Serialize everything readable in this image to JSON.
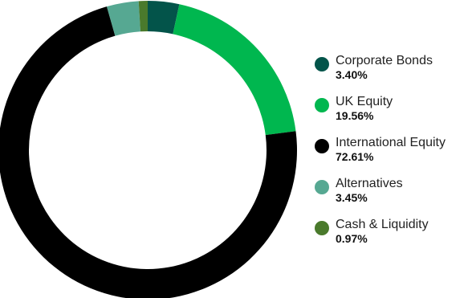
{
  "chart_data": {
    "type": "pie",
    "donut": true,
    "title": "",
    "legend_position": "right",
    "slices": [
      {
        "label": "Corporate Bonds",
        "value": 3.4,
        "value_label": "3.40%",
        "color": "#03544a"
      },
      {
        "label": "UK Equity",
        "value": 19.56,
        "value_label": "19.56%",
        "color": "#00b74f"
      },
      {
        "label": "International Equity",
        "value": 72.61,
        "value_label": "72.61%",
        "color": "#000000"
      },
      {
        "label": "Alternatives",
        "value": 3.45,
        "value_label": "3.45%",
        "color": "#56a892"
      },
      {
        "label": "Cash & Liquidity",
        "value": 0.97,
        "value_label": "0.97%",
        "color": "#4a7a2c"
      }
    ]
  }
}
